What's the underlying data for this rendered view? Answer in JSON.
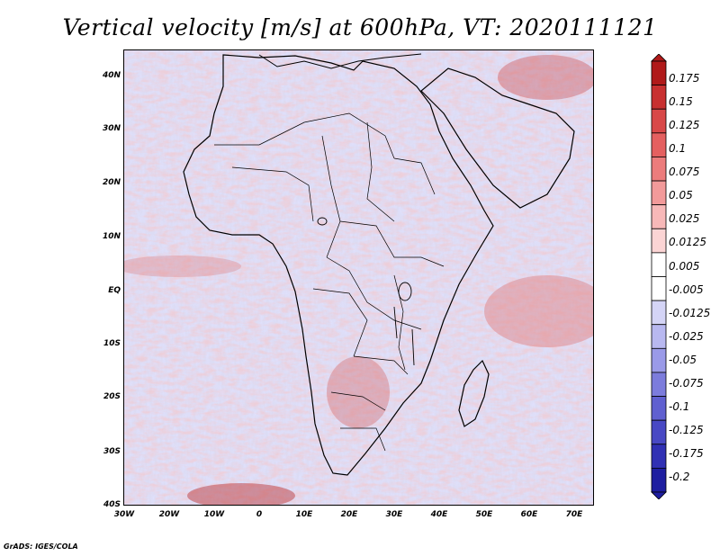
{
  "title": "Vertical velocity [m/s] at 600hPa, VT: 2020111121",
  "footer": "GrADS: IGES/COLA",
  "map": {
    "lat_labels": [
      "40N",
      "30N",
      "20N",
      "10N",
      "EQ",
      "10S",
      "20S",
      "30S",
      "40S"
    ],
    "lon_labels": [
      "30W",
      "20W",
      "10W",
      "0",
      "10E",
      "20E",
      "30E",
      "40E",
      "50E",
      "60E",
      "70E"
    ],
    "extent": {
      "lon_min": -30,
      "lon_max": 75,
      "lat_min": -40,
      "lat_max": 45
    }
  },
  "colorbar": {
    "labels": [
      "0.175",
      "0.15",
      "0.125",
      "0.1",
      "0.075",
      "0.05",
      "0.025",
      "0.0125",
      "0.005",
      "-0.005",
      "-0.0125",
      "-0.025",
      "-0.05",
      "-0.075",
      "-0.1",
      "-0.125",
      "-0.175",
      "-0.2"
    ],
    "colors": [
      "#b01a1a",
      "#c83030",
      "#d84848",
      "#e46060",
      "#ec7c7c",
      "#f29a9a",
      "#f7b8b8",
      "#fbd4d4",
      "#ffffff",
      "#ffffff",
      "#d4d4f6",
      "#b8b8f0",
      "#9a9ae8",
      "#7c7cdc",
      "#6060d0",
      "#4848c4",
      "#3030b4",
      "#1e1ea0"
    ]
  }
}
